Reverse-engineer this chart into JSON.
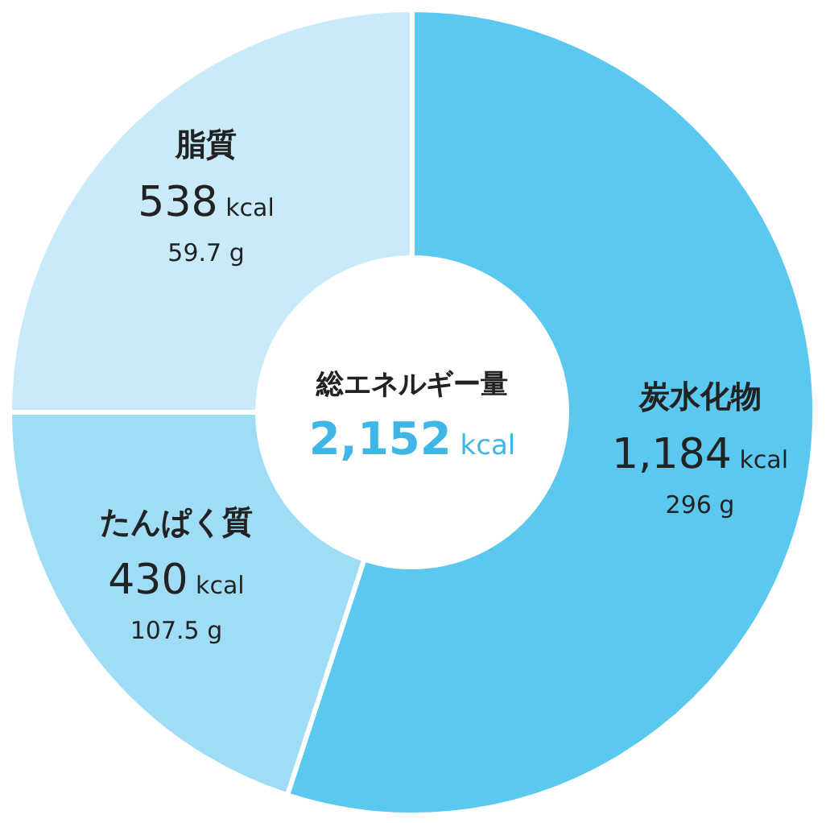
{
  "chart_data": {
    "type": "donut",
    "title": "総エネルギー量",
    "subtitle": "2,152 kcal",
    "categories": [
      "炭水化物",
      "たんぱく質",
      "脂質"
    ],
    "values": [
      1184,
      430,
      538
    ],
    "colors": [
      "#5bc8ef",
      "#9fdcf5",
      "#c9ebf9"
    ],
    "value_labels": [
      "1,184 kcal",
      "430 kcal",
      "538 kcal"
    ],
    "annotations": [
      "296 g",
      "107.5 g",
      "59.7 g"
    ]
  }
}
